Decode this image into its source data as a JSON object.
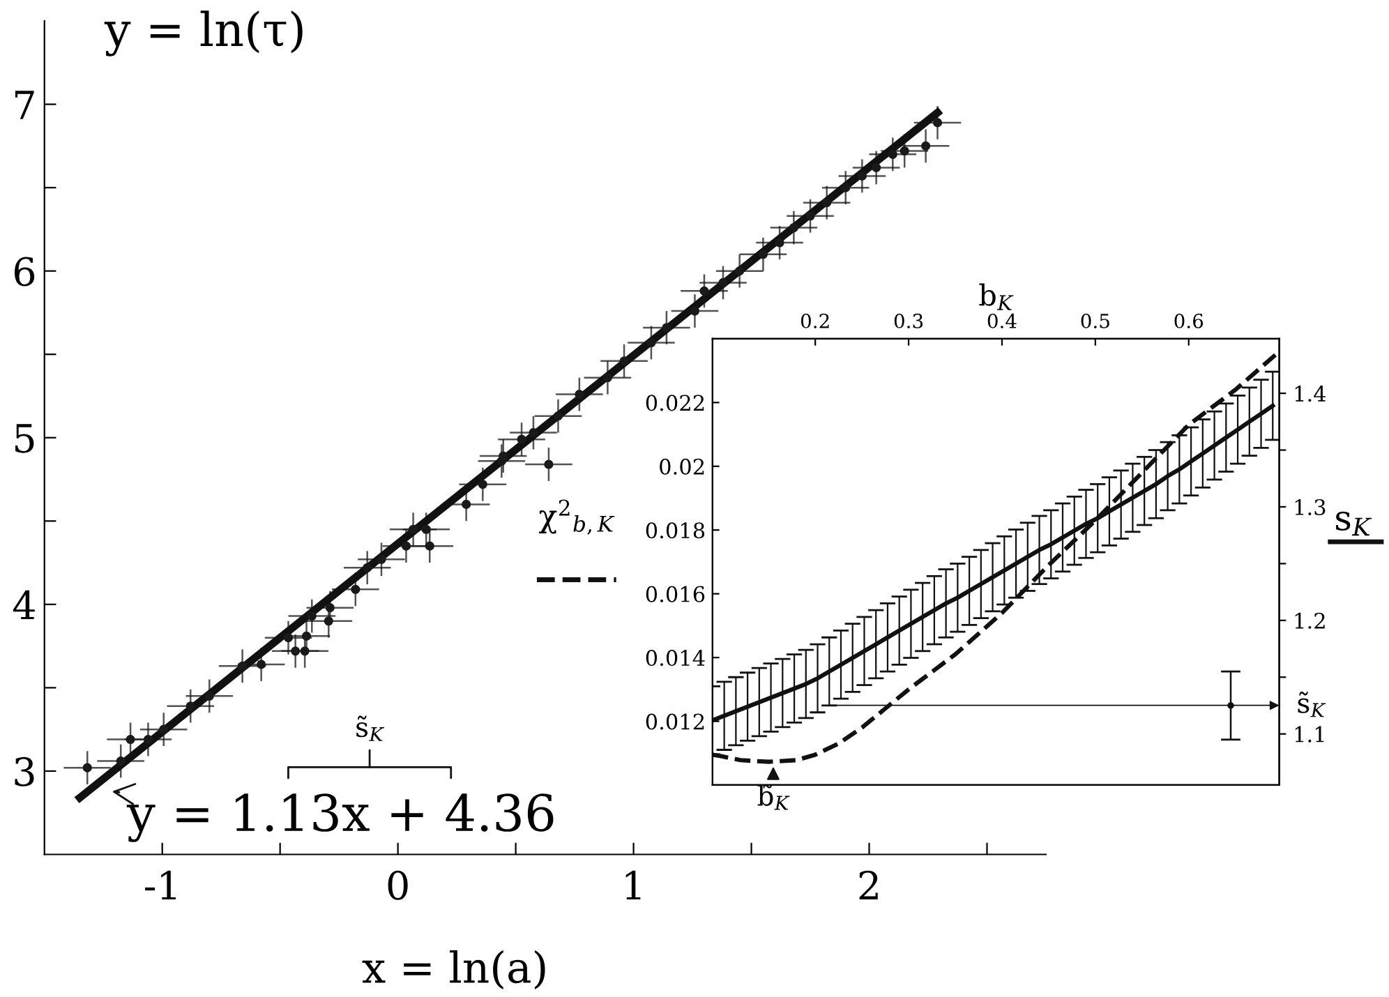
{
  "chart_data": [
    {
      "type": "scatter",
      "xlabel": "x = ln(a)",
      "ylabel": "y = ln(τ)",
      "xlim": [
        -1.5,
        2.75
      ],
      "ylim": [
        2.5,
        7.5
      ],
      "xticks": [
        -1,
        {
          "value": -0.5,
          "label": null
        },
        0,
        {
          "value": 0.5,
          "label": null
        },
        1,
        {
          "value": 1.5,
          "label": null
        },
        2,
        {
          "value": 2.5,
          "label": null
        }
      ],
      "yticks": [
        3,
        {
          "value": 3.5,
          "label": null
        },
        4,
        {
          "value": 4.5,
          "label": null
        },
        5,
        {
          "value": 5.5,
          "label": null
        },
        6,
        {
          "value": 6.5,
          "label": null
        },
        7
      ],
      "grid": false,
      "series": [
        {
          "color": "#1a1a1a",
          "marker": "circle",
          "x": [
            -1.318,
            -1.176,
            -1.135,
            -1.06,
            -0.994,
            -0.88,
            -0.8,
            -0.66,
            -0.58,
            -0.465,
            -0.435,
            -0.395,
            -0.388,
            -0.365,
            -0.294,
            -0.288,
            -0.18,
            -0.13,
            -0.07,
            0.035,
            0.065,
            0.135,
            0.12,
            0.29,
            0.36,
            0.44,
            0.64,
            0.447,
            0.525,
            0.575,
            0.68,
            0.77,
            0.89,
            0.96,
            1.075,
            1.14,
            1.26,
            1.3,
            1.38,
            1.45,
            1.55,
            1.62,
            1.68,
            1.75,
            1.82,
            1.9,
            1.97,
            2.03,
            2.1,
            2.15,
            2.24,
            2.29
          ],
          "values": [
            3.02,
            3.06,
            3.19,
            3.19,
            3.25,
            3.39,
            3.45,
            3.63,
            3.64,
            3.8,
            3.72,
            3.72,
            3.81,
            3.93,
            3.9,
            3.98,
            4.09,
            4.22,
            4.27,
            4.35,
            4.45,
            4.35,
            4.45,
            4.6,
            4.72,
            4.86,
            4.84,
            4.89,
            4.99,
            5.03,
            5.13,
            5.26,
            5.36,
            5.46,
            5.57,
            5.66,
            5.76,
            5.88,
            5.93,
            6.0,
            6.1,
            6.17,
            6.26,
            6.33,
            6.41,
            6.5,
            6.57,
            6.62,
            6.7,
            6.72,
            6.75,
            6.89
          ],
          "errors": [
            0.1,
            0.1,
            0.1,
            0.1,
            0.1,
            0.1,
            0.1,
            0.1,
            0.1,
            0.1,
            0.1,
            0.1,
            0.1,
            0.1,
            0.1,
            0.1,
            0.1,
            0.1,
            0.1,
            0.1,
            0.1,
            0.1,
            0.1,
            0.1,
            0.1,
            0.1,
            0.1,
            0.1,
            0.1,
            0.1,
            0.1,
            0.1,
            0.1,
            0.1,
            0.1,
            0.1,
            0.1,
            0.1,
            0.1,
            0.1,
            0.1,
            0.1,
            0.1,
            0.1,
            0.1,
            0.1,
            0.1,
            0.1,
            0.1,
            0.1,
            0.1,
            0.1
          ],
          "xerrors": [
            0.1,
            0.1,
            0.1,
            0.1,
            0.1,
            0.1,
            0.1,
            0.1,
            0.1,
            0.1,
            0.1,
            0.1,
            0.1,
            0.1,
            0.1,
            0.1,
            0.1,
            0.1,
            0.1,
            0.1,
            0.1,
            0.1,
            0.1,
            0.1,
            0.1,
            0.1,
            0.1,
            0.1,
            0.1,
            0.1,
            0.1,
            0.1,
            0.1,
            0.1,
            0.1,
            0.1,
            0.1,
            0.1,
            0.1,
            0.1,
            0.1,
            0.1,
            0.1,
            0.1,
            0.1,
            0.1,
            0.1,
            0.1,
            0.1,
            0.1,
            0.1,
            0.1
          ]
        },
        {
          "type": "line",
          "color": "#111111",
          "x": [
            -1.35,
            2.29
          ],
          "values": [
            2.84,
            6.95
          ]
        }
      ],
      "annotations": [
        "y = 1.13x + 4.36",
        "s̃$_{K}$"
      ]
    },
    {
      "type": "line",
      "xlabel": "b$_{K}$",
      "ylabel": "χ$^{2}$$_{b,K}$",
      "y2label": "s$_{K}$",
      "xlim": [
        0.09,
        0.697
      ],
      "xticks": [
        0.2,
        0.3,
        0.4,
        0.5,
        0.6
      ],
      "ylim": [
        0.01,
        0.024
      ],
      "yticks": [
        0.012,
        0.014,
        0.016,
        0.018,
        0.02,
        0.022
      ],
      "y2lim": [
        1.055,
        1.448
      ],
      "y2ticks": [
        1.1,
        {
          "value": 1.15,
          "label": null
        },
        1.2,
        {
          "value": 1.25,
          "label": null
        },
        1.3,
        {
          "value": 1.35,
          "label": null
        },
        1.4
      ],
      "grid": false,
      "series": [
        {
          "color": "#111111",
          "line_style": "dashed",
          "x": [
            0.09,
            0.1,
            0.12,
            0.15,
            0.18,
            0.2,
            0.225,
            0.25,
            0.275,
            0.3,
            0.35,
            0.4,
            0.45,
            0.5,
            0.55,
            0.6,
            0.65,
            0.697
          ],
          "values": [
            0.01095,
            0.0109,
            0.01078,
            0.01073,
            0.01078,
            0.01095,
            0.0113,
            0.0118,
            0.0124,
            0.013,
            0.0141,
            0.0154,
            0.0169,
            0.0183,
            0.0198,
            0.0213,
            0.0224,
            0.0236
          ]
        },
        {
          "color": "#111111",
          "axis": "y2",
          "line_style": "solid",
          "x": [
            0.09,
            0.1025,
            0.115,
            0.1275,
            0.14,
            0.1525,
            0.165,
            0.1775,
            0.19,
            0.2025,
            0.215,
            0.2275,
            0.24,
            0.2525,
            0.265,
            0.2775,
            0.29,
            0.3025,
            0.315,
            0.3275,
            0.34,
            0.3525,
            0.365,
            0.3775,
            0.39,
            0.4025,
            0.415,
            0.4275,
            0.44,
            0.4525,
            0.465,
            0.4775,
            0.49,
            0.5025,
            0.515,
            0.5275,
            0.54,
            0.5525,
            0.565,
            0.5775,
            0.59,
            0.6025,
            0.615,
            0.6275,
            0.64,
            0.6525,
            0.665,
            0.6775,
            0.69
          ],
          "values": [
            1.112,
            1.116,
            1.12,
            1.124,
            1.128,
            1.132,
            1.136,
            1.14,
            1.144,
            1.149,
            1.155,
            1.161,
            1.167,
            1.173,
            1.179,
            1.185,
            1.191,
            1.197,
            1.203,
            1.209,
            1.215,
            1.22,
            1.226,
            1.232,
            1.238,
            1.244,
            1.25,
            1.256,
            1.262,
            1.267,
            1.273,
            1.279,
            1.285,
            1.29,
            1.296,
            1.302,
            1.308,
            1.314,
            1.32,
            1.327,
            1.333,
            1.34,
            1.347,
            1.354,
            1.361,
            1.368,
            1.375,
            1.382,
            1.389
          ],
          "errors": [
            0.03,
            0.03,
            0.03,
            0.03,
            0.03,
            0.03,
            0.03,
            0.03,
            0.03,
            0.03,
            0.03,
            0.03,
            0.03,
            0.03,
            0.03,
            0.03,
            0.03,
            0.03,
            0.03,
            0.03,
            0.03,
            0.03,
            0.03,
            0.03,
            0.03,
            0.03,
            0.03,
            0.03,
            0.03,
            0.03,
            0.03,
            0.03,
            0.03,
            0.03,
            0.03,
            0.03,
            0.03,
            0.03,
            0.03,
            0.03,
            0.03,
            0.03,
            0.03,
            0.03,
            0.03,
            0.03,
            0.03,
            0.03,
            0.03
          ]
        },
        {
          "type": "scatter",
          "color": "#111111",
          "axis": "y2",
          "marker": "circle",
          "x": [
            0.645
          ],
          "values": [
            1.125
          ],
          "errors": [
            0.03
          ]
        }
      ],
      "annotations": [
        {
          "text": "b̃$_{K}$",
          "x": 0.155,
          "y": 0.0107
        },
        {
          "text": "s̃$_{K}$",
          "x": 0.215,
          "y": 0.0125
        }
      ]
    }
  ]
}
